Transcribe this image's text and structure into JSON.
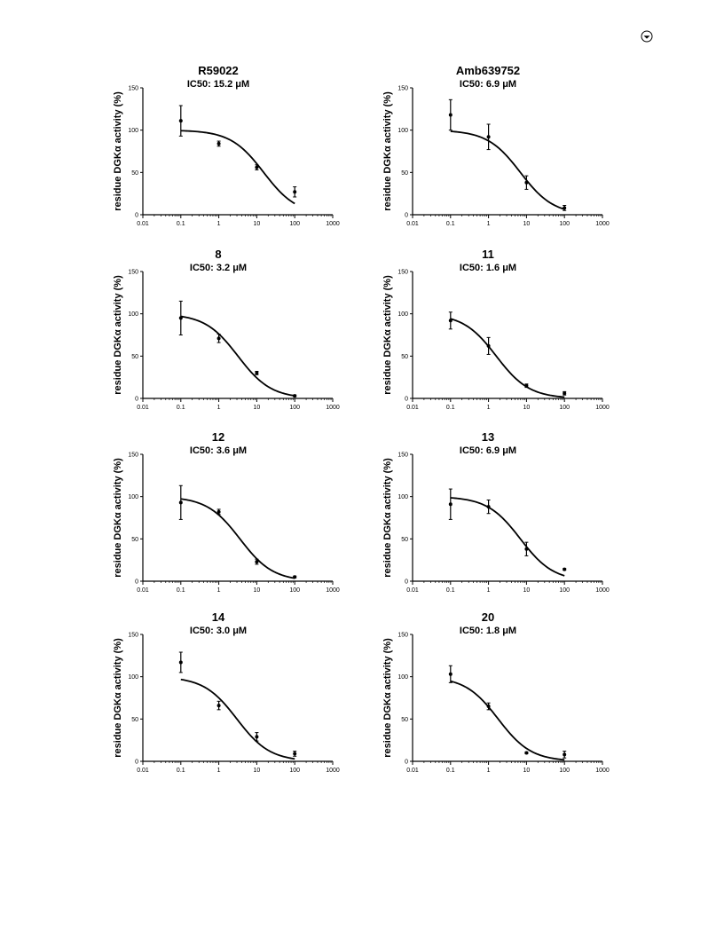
{
  "page_icon": "circled-arrow-icon",
  "chart_data": [
    {
      "type": "scatter",
      "title": "R59022",
      "subtitle": "IC50: 15.2 μM",
      "ylabel": "residue DGKα activity (%)",
      "xlabel": "",
      "x_scale": "log",
      "xlim": [
        0.01,
        1000
      ],
      "ylim": [
        0,
        150
      ],
      "x_ticks": [
        "0.01",
        "0.1",
        "1",
        "10",
        "100",
        "1000"
      ],
      "y_ticks": [
        "0",
        "50",
        "100",
        "150"
      ],
      "ic50": 15.2,
      "top": 100,
      "bottom": 0,
      "x": [
        0.1,
        1,
        10,
        100
      ],
      "y": [
        111,
        84,
        56,
        27
      ],
      "err": [
        18,
        3,
        3,
        6
      ],
      "fit_range": [
        0.1,
        100
      ]
    },
    {
      "type": "scatter",
      "title": "Amb639752",
      "subtitle": "IC50: 6.9 μM",
      "ylabel": "residue DGKα activity (%)",
      "xlabel": "",
      "x_scale": "log",
      "xlim": [
        0.01,
        1000
      ],
      "ylim": [
        0,
        150
      ],
      "x_ticks": [
        "0.01",
        "0.1",
        "1",
        "10",
        "100",
        "1000"
      ],
      "y_ticks": [
        "0",
        "50",
        "100",
        "150"
      ],
      "ic50": 6.9,
      "top": 100,
      "bottom": 0,
      "x": [
        0.1,
        1,
        10,
        100
      ],
      "y": [
        118,
        92,
        38,
        8
      ],
      "err": [
        18,
        15,
        8,
        3
      ],
      "fit_range": [
        0.1,
        100
      ]
    },
    {
      "type": "scatter",
      "title": "8",
      "subtitle": "IC50: 3.2 μM",
      "ylabel": "residue DGKα activity (%)",
      "xlabel": "",
      "x_scale": "log",
      "xlim": [
        0.01,
        1000
      ],
      "ylim": [
        0,
        150
      ],
      "x_ticks": [
        "0.01",
        "0.1",
        "1",
        "10",
        "100",
        "1000"
      ],
      "y_ticks": [
        "0",
        "50",
        "100",
        "150"
      ],
      "ic50": 3.2,
      "top": 100,
      "bottom": 0,
      "x": [
        0.1,
        1,
        10,
        100
      ],
      "y": [
        95,
        71,
        30,
        3
      ],
      "err": [
        20,
        5,
        2,
        1
      ],
      "fit_range": [
        0.1,
        100
      ]
    },
    {
      "type": "scatter",
      "title": "11",
      "subtitle": "IC50: 1.6 μM",
      "ylabel": "residue DGKα activity (%)",
      "xlabel": "",
      "x_scale": "log",
      "xlim": [
        0.01,
        1000
      ],
      "ylim": [
        0,
        150
      ],
      "x_ticks": [
        "0.01",
        "0.1",
        "1",
        "10",
        "100",
        "1000"
      ],
      "y_ticks": [
        "0",
        "50",
        "100",
        "150"
      ],
      "ic50": 1.6,
      "top": 100,
      "bottom": 0,
      "x": [
        0.1,
        1,
        10,
        100
      ],
      "y": [
        92,
        62,
        15,
        6
      ],
      "err": [
        10,
        10,
        2,
        2
      ],
      "fit_range": [
        0.1,
        100
      ]
    },
    {
      "type": "scatter",
      "title": "12",
      "subtitle": "IC50: 3.6 μM",
      "ylabel": "residue DGKα activity (%)",
      "xlabel": "",
      "x_scale": "log",
      "xlim": [
        0.01,
        1000
      ],
      "ylim": [
        0,
        150
      ],
      "x_ticks": [
        "0.01",
        "0.1",
        "1",
        "10",
        "100",
        "1000"
      ],
      "y_ticks": [
        "0",
        "50",
        "100",
        "150"
      ],
      "ic50": 3.6,
      "top": 100,
      "bottom": 0,
      "x": [
        0.1,
        1,
        10,
        100
      ],
      "y": [
        93,
        82,
        23,
        5
      ],
      "err": [
        20,
        3,
        3,
        1
      ],
      "fit_range": [
        0.1,
        100
      ]
    },
    {
      "type": "scatter",
      "title": "13",
      "subtitle": "IC50: 6.9 μM",
      "ylabel": "residue DGKα activity (%)",
      "xlabel": "",
      "x_scale": "log",
      "xlim": [
        0.01,
        1000
      ],
      "ylim": [
        0,
        150
      ],
      "x_ticks": [
        "0.01",
        "0.1",
        "1",
        "10",
        "100",
        "1000"
      ],
      "y_ticks": [
        "0",
        "50",
        "100",
        "150"
      ],
      "ic50": 6.9,
      "top": 100,
      "bottom": 0,
      "x": [
        0.1,
        1,
        10,
        100
      ],
      "y": [
        91,
        88,
        38,
        14
      ],
      "err": [
        18,
        8,
        8,
        1
      ],
      "fit_range": [
        0.1,
        100
      ]
    },
    {
      "type": "scatter",
      "title": "14",
      "subtitle": "IC50: 3.0 μM",
      "ylabel": "residue DGKα activity (%)",
      "xlabel": "",
      "x_scale": "log",
      "xlim": [
        0.01,
        1000
      ],
      "ylim": [
        0,
        150
      ],
      "x_ticks": [
        "0.01",
        "0.1",
        "1",
        "10",
        "100",
        "1000"
      ],
      "y_ticks": [
        "0",
        "50",
        "100",
        "150"
      ],
      "ic50": 3.0,
      "top": 100,
      "bottom": 0,
      "x": [
        0.1,
        1,
        10,
        100
      ],
      "y": [
        117,
        66,
        29,
        9
      ],
      "err": [
        12,
        5,
        5,
        3
      ],
      "fit_range": [
        0.1,
        100
      ]
    },
    {
      "type": "scatter",
      "title": "20",
      "subtitle": "IC50: 1.8 μM",
      "ylabel": "residue DGKα activity (%)",
      "xlabel": "",
      "x_scale": "log",
      "xlim": [
        0.01,
        1000
      ],
      "ylim": [
        0,
        150
      ],
      "x_ticks": [
        "0.01",
        "0.1",
        "1",
        "10",
        "100",
        "1000"
      ],
      "y_ticks": [
        "0",
        "50",
        "100",
        "150"
      ],
      "ic50": 1.8,
      "top": 100,
      "bottom": 0,
      "x": [
        0.1,
        1,
        10,
        100
      ],
      "y": [
        103,
        65,
        10,
        8
      ],
      "err": [
        10,
        4,
        1,
        4
      ],
      "fit_range": [
        0.1,
        100
      ]
    }
  ]
}
